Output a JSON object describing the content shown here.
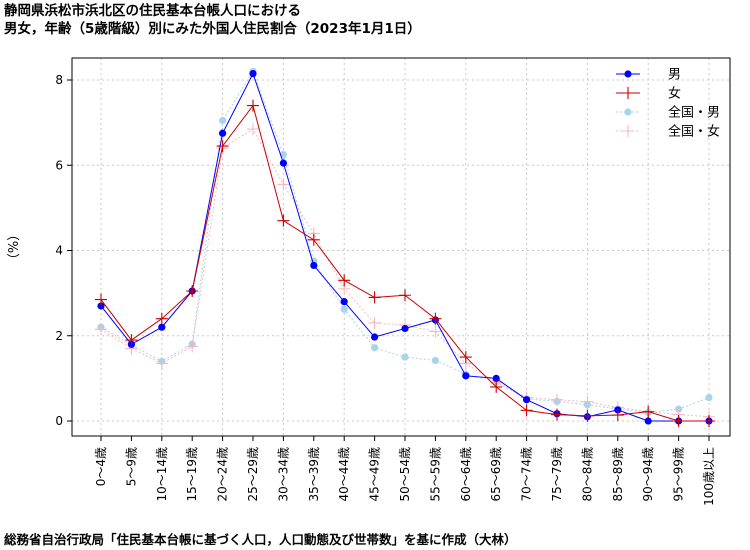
{
  "title_line1": "静岡県浜松市浜北区の住民基本台帳人口における",
  "title_line2": "男女，年齢（5歳階級）別にみた外国人住民割合（2023年1月1日）",
  "footer": "総務省自治行政局「住民基本台帳に基づく人口，人口動態及び世帯数」を基に作成（大林）",
  "chart_data": {
    "type": "line",
    "ylabel": "（%）",
    "ylim": [
      0,
      8.5
    ],
    "yticks": [
      0,
      2,
      4,
      6,
      8
    ],
    "grid": true,
    "legend_position": "top-right",
    "categories": [
      "0～4歳",
      "5～9歳",
      "10～14歳",
      "15～19歳",
      "20～24歳",
      "25～29歳",
      "30～34歳",
      "35～39歳",
      "40～44歳",
      "45～49歳",
      "50～54歳",
      "55～59歳",
      "60～64歳",
      "65～69歳",
      "70～74歳",
      "75～79歳",
      "80～84歳",
      "85～89歳",
      "90～94歳",
      "95～99歳",
      "100歳以上"
    ],
    "series": [
      {
        "name": "男",
        "color": "#0000ff",
        "marker": "dot",
        "line": "solid",
        "values": [
          2.7,
          1.8,
          2.2,
          3.05,
          6.75,
          8.15,
          6.05,
          3.65,
          2.8,
          1.97,
          2.17,
          2.37,
          1.06,
          1.0,
          0.5,
          0.17,
          0.1,
          0.26,
          0.0,
          0.0,
          0.0
        ]
      },
      {
        "name": "女",
        "color": "#cc0000",
        "marker": "plus",
        "line": "solid",
        "values": [
          2.85,
          1.9,
          2.4,
          3.05,
          6.45,
          7.4,
          4.7,
          4.25,
          3.3,
          2.9,
          2.95,
          2.4,
          1.5,
          0.8,
          0.25,
          0.15,
          0.12,
          0.14,
          0.22,
          0.0,
          0.0
        ]
      },
      {
        "name": "全国・男",
        "color": "#a6d4ea",
        "marker": "dot",
        "line": "dotted",
        "values": [
          2.2,
          1.78,
          1.4,
          1.8,
          7.05,
          8.2,
          6.25,
          3.75,
          2.62,
          1.72,
          1.5,
          1.42,
          1.1,
          0.92,
          0.52,
          0.46,
          0.38,
          0.28,
          0.2,
          0.28,
          0.55
        ]
      },
      {
        "name": "全国・女",
        "color": "#f4b8c4",
        "marker": "plus",
        "line": "dotted",
        "values": [
          2.15,
          1.7,
          1.35,
          1.75,
          6.4,
          6.85,
          5.55,
          4.4,
          3.1,
          2.3,
          2.25,
          2.1,
          1.35,
          0.9,
          0.55,
          0.5,
          0.45,
          0.32,
          0.22,
          0.15,
          0.1
        ]
      }
    ]
  }
}
